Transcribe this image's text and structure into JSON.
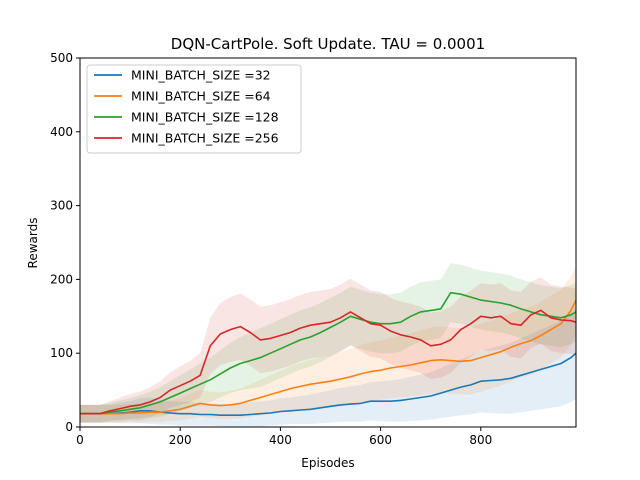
{
  "chart_data": {
    "type": "line",
    "title": "DQN-CartPole. Soft Update. TAU = 0.0001",
    "xlabel": "Episodes",
    "ylabel": "Rewards",
    "xlim": [
      0,
      990
    ],
    "ylim": [
      0,
      500
    ],
    "x_ticks": [
      0,
      200,
      400,
      600,
      800
    ],
    "y_ticks": [
      0,
      100,
      200,
      300,
      400,
      500
    ],
    "grid": false,
    "legend_position": "upper-left",
    "series": [
      {
        "name": "MINI_BATCH_SIZE =32",
        "color": "#1f77b4",
        "x": [
          0,
          20,
          40,
          60,
          80,
          100,
          120,
          140,
          160,
          180,
          200,
          220,
          240,
          260,
          280,
          300,
          320,
          340,
          360,
          380,
          400,
          420,
          440,
          460,
          480,
          500,
          520,
          540,
          560,
          580,
          600,
          620,
          640,
          660,
          680,
          700,
          720,
          740,
          760,
          780,
          800,
          820,
          840,
          860,
          880,
          900,
          920,
          940,
          960,
          980,
          990
        ],
        "values": [
          18,
          18,
          18,
          18,
          19,
          20,
          22,
          22,
          20,
          19,
          18,
          18,
          17,
          17,
          16,
          16,
          16,
          17,
          18,
          19,
          21,
          22,
          23,
          24,
          26,
          28,
          30,
          31,
          32,
          35,
          35,
          35,
          36,
          38,
          40,
          42,
          46,
          50,
          54,
          57,
          62,
          63,
          64,
          66,
          70,
          74,
          78,
          82,
          86,
          94,
          100
        ],
        "band": [
          12,
          12,
          12,
          12,
          14,
          15,
          17,
          18,
          17,
          16,
          16,
          16,
          15,
          15,
          15,
          15,
          15,
          16,
          17,
          17,
          18,
          18,
          19,
          20,
          21,
          22,
          23,
          24,
          25,
          26,
          27,
          28,
          29,
          30,
          31,
          32,
          34,
          36,
          38,
          40,
          42,
          44,
          46,
          48,
          50,
          52,
          54,
          56,
          58,
          60,
          62
        ]
      },
      {
        "name": "MINI_BATCH_SIZE =64",
        "color": "#ff7f0e",
        "x": [
          0,
          20,
          40,
          60,
          80,
          100,
          120,
          140,
          160,
          180,
          200,
          220,
          240,
          260,
          280,
          300,
          320,
          340,
          360,
          380,
          400,
          420,
          440,
          460,
          480,
          500,
          520,
          540,
          560,
          580,
          600,
          620,
          640,
          660,
          680,
          700,
          720,
          740,
          760,
          780,
          800,
          820,
          840,
          860,
          880,
          900,
          920,
          940,
          960,
          980,
          990
        ],
        "values": [
          18,
          18,
          18,
          18,
          18,
          19,
          19,
          20,
          20,
          22,
          24,
          28,
          32,
          30,
          29,
          30,
          32,
          36,
          40,
          44,
          48,
          52,
          55,
          58,
          60,
          62,
          65,
          68,
          72,
          75,
          77,
          80,
          82,
          84,
          87,
          90,
          91,
          90,
          89,
          90,
          94,
          98,
          102,
          108,
          113,
          117,
          124,
          132,
          140,
          158,
          172
        ],
        "band": [
          12,
          12,
          12,
          12,
          12,
          12,
          13,
          13,
          13,
          14,
          15,
          17,
          18,
          18,
          18,
          19,
          20,
          22,
          24,
          26,
          28,
          30,
          32,
          33,
          35,
          36,
          37,
          38,
          39,
          40,
          40,
          41,
          42,
          43,
          44,
          45,
          45,
          45,
          45,
          46,
          46,
          46,
          46,
          46,
          46,
          46,
          46,
          46,
          46,
          46,
          46
        ]
      },
      {
        "name": "MINI_BATCH_SIZE =128",
        "color": "#2ca02c",
        "x": [
          0,
          20,
          40,
          60,
          80,
          100,
          120,
          140,
          160,
          180,
          200,
          220,
          240,
          260,
          280,
          300,
          320,
          340,
          360,
          380,
          400,
          420,
          440,
          460,
          480,
          500,
          520,
          540,
          560,
          580,
          600,
          620,
          640,
          660,
          680,
          700,
          720,
          740,
          760,
          780,
          800,
          820,
          840,
          860,
          880,
          900,
          920,
          940,
          960,
          980,
          990
        ],
        "values": [
          18,
          18,
          18,
          20,
          22,
          24,
          26,
          30,
          34,
          40,
          46,
          52,
          58,
          64,
          72,
          80,
          86,
          90,
          94,
          100,
          106,
          112,
          118,
          122,
          128,
          135,
          142,
          150,
          146,
          142,
          140,
          140,
          142,
          150,
          156,
          158,
          160,
          182,
          180,
          176,
          172,
          170,
          168,
          165,
          160,
          156,
          152,
          150,
          148,
          152,
          156
        ],
        "band": [
          12,
          12,
          12,
          13,
          14,
          15,
          17,
          18,
          20,
          22,
          24,
          26,
          28,
          30,
          32,
          34,
          36,
          38,
          40,
          40,
          40,
          40,
          40,
          40,
          40,
          40,
          40,
          40,
          40,
          40,
          40,
          40,
          40,
          40,
          40,
          40,
          40,
          40,
          40,
          40,
          40,
          40,
          40,
          40,
          40,
          40,
          40,
          40,
          40,
          40,
          40
        ]
      },
      {
        "name": "MINI_BATCH_SIZE =256",
        "color": "#d62728",
        "x": [
          0,
          20,
          40,
          60,
          80,
          100,
          120,
          140,
          160,
          180,
          200,
          220,
          240,
          260,
          280,
          300,
          320,
          340,
          360,
          380,
          400,
          420,
          440,
          460,
          480,
          500,
          520,
          540,
          560,
          580,
          600,
          620,
          640,
          660,
          680,
          700,
          720,
          740,
          760,
          780,
          800,
          820,
          840,
          860,
          880,
          900,
          920,
          940,
          960,
          980,
          990
        ],
        "values": [
          18,
          18,
          18,
          22,
          25,
          28,
          30,
          34,
          40,
          50,
          56,
          62,
          70,
          110,
          126,
          132,
          136,
          128,
          118,
          120,
          124,
          128,
          134,
          138,
          140,
          142,
          148,
          156,
          148,
          140,
          138,
          130,
          125,
          122,
          118,
          110,
          112,
          118,
          132,
          140,
          150,
          148,
          150,
          140,
          138,
          152,
          158,
          148,
          145,
          144,
          142
        ],
        "band": [
          12,
          12,
          12,
          13,
          15,
          17,
          18,
          20,
          22,
          24,
          26,
          28,
          30,
          38,
          42,
          44,
          45,
          45,
          45,
          45,
          45,
          45,
          45,
          45,
          45,
          45,
          45,
          45,
          45,
          45,
          45,
          45,
          45,
          45,
          45,
          45,
          45,
          45,
          45,
          45,
          45,
          45,
          45,
          45,
          45,
          45,
          45,
          45,
          45,
          45,
          45
        ]
      }
    ]
  }
}
